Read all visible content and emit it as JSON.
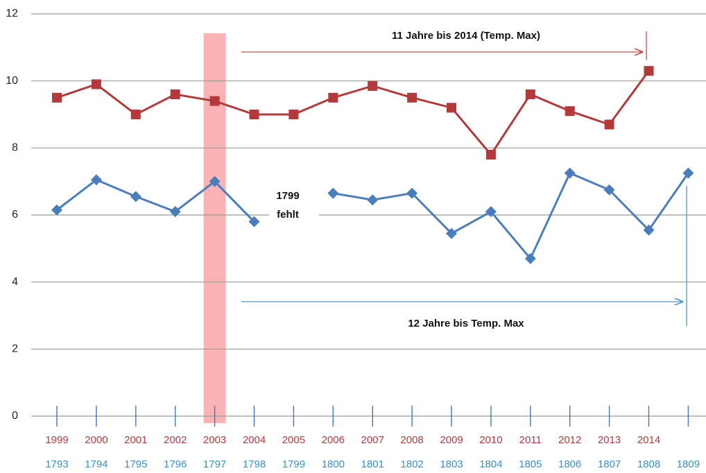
{
  "chart_data": {
    "type": "line",
    "categories": [
      "1999",
      "2000",
      "2001",
      "2002",
      "2003",
      "2004",
      "2005",
      "2006",
      "2007",
      "2008",
      "2009",
      "2010",
      "2011",
      "2012",
      "2013",
      "2014",
      null
    ],
    "categories_secondary": [
      "1793",
      "1794",
      "1795",
      "1796",
      "1797",
      "1798",
      "1799",
      "1800",
      "1801",
      "1802",
      "1803",
      "1804",
      "1805",
      "1806",
      "1807",
      "1808",
      "1809"
    ],
    "series": [
      {
        "color": "#b3393b",
        "marker": "square",
        "values": [
          9.5,
          9.9,
          9.0,
          9.6,
          9.4,
          9.0,
          9.0,
          9.5,
          9.85,
          9.5,
          9.2,
          7.8,
          9.6,
          9.1,
          8.7,
          10.3,
          null
        ]
      },
      {
        "color": "#4a7ebb",
        "marker": "diamond",
        "values": [
          6.15,
          7.05,
          6.55,
          6.1,
          7.0,
          5.8,
          null,
          6.65,
          6.45,
          6.65,
          5.45,
          6.1,
          4.7,
          7.25,
          6.75,
          5.55,
          7.25
        ]
      }
    ],
    "ylim": [
      0,
      12
    ],
    "yticks": [
      0,
      2,
      4,
      6,
      8,
      10,
      12
    ],
    "grid": true,
    "highlight_index": 4,
    "annotations": [
      "11 Jahre bis  2014 (Temp. Max)",
      "12 Jahre bis Temp. Max",
      "1799",
      "fehlt"
    ]
  }
}
